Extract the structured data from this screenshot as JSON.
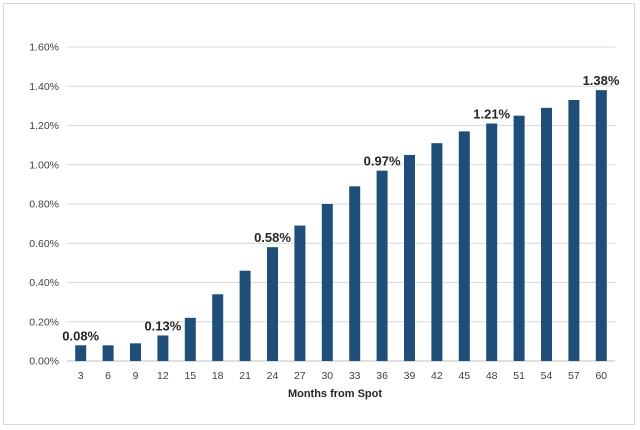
{
  "chart_data": {
    "type": "bar",
    "xlabel": "Months from Spot",
    "ylabel": "",
    "title": "",
    "ylim": [
      0,
      0.016
    ],
    "y_ticks": [
      0.0,
      0.002,
      0.004,
      0.006,
      0.008,
      0.01,
      0.012,
      0.014,
      0.016
    ],
    "y_tick_labels": [
      "0.00%",
      "0.20%",
      "0.40%",
      "0.60%",
      "0.80%",
      "1.00%",
      "1.20%",
      "1.40%",
      "1.60%"
    ],
    "grid": true,
    "legend": "none",
    "bar_color": "#1f4e79",
    "categories": [
      "3",
      "6",
      "9",
      "12",
      "15",
      "18",
      "21",
      "24",
      "27",
      "30",
      "33",
      "36",
      "39",
      "42",
      "45",
      "48",
      "51",
      "54",
      "57",
      "60"
    ],
    "values": [
      0.0008,
      0.0008,
      0.0009,
      0.0013,
      0.0022,
      0.0034,
      0.0046,
      0.0058,
      0.0069,
      0.008,
      0.0089,
      0.0097,
      0.0105,
      0.0111,
      0.0117,
      0.0121,
      0.0125,
      0.0129,
      0.0133,
      0.0138
    ],
    "data_labels": [
      {
        "category": "3",
        "text": "0.08%"
      },
      {
        "category": "12",
        "text": "0.13%"
      },
      {
        "category": "24",
        "text": "0.58%"
      },
      {
        "category": "36",
        "text": "0.97%"
      },
      {
        "category": "48",
        "text": "1.21%"
      },
      {
        "category": "60",
        "text": "1.38%"
      }
    ]
  }
}
